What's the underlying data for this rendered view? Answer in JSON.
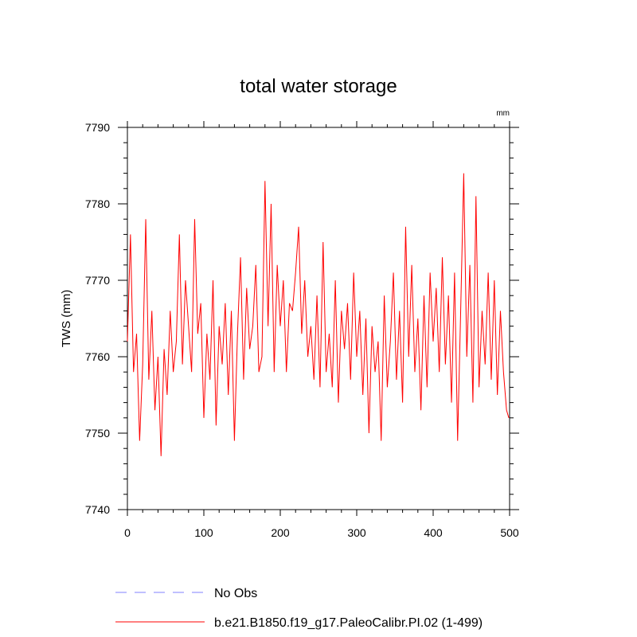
{
  "chart_data": {
    "type": "line",
    "title": "total water storage",
    "ylabel": "TWS  (mm)",
    "xlabel": "",
    "units": "mm",
    "xlim": [
      0,
      500
    ],
    "ylim": [
      7740,
      7790
    ],
    "xticks": [
      0,
      100,
      200,
      300,
      400,
      500
    ],
    "yticks": [
      7740,
      7750,
      7760,
      7770,
      7780,
      7790
    ],
    "grid": false,
    "legend_position": "bottom",
    "series": [
      {
        "name": "No Obs",
        "color": "#8080ff",
        "dash": "dashed",
        "x": [],
        "y": []
      },
      {
        "name": "b.e21.B1850.f19_g17.PaleoCalibr.PI.02 (1-499)",
        "color": "#ff0000",
        "dash": "solid",
        "x": [
          0,
          4,
          8,
          12,
          16,
          20,
          24,
          28,
          32,
          36,
          40,
          44,
          48,
          52,
          56,
          60,
          64,
          68,
          72,
          76,
          80,
          84,
          88,
          92,
          96,
          100,
          104,
          108,
          112,
          116,
          120,
          124,
          128,
          132,
          136,
          140,
          144,
          148,
          152,
          156,
          160,
          164,
          168,
          172,
          176,
          180,
          184,
          188,
          192,
          196,
          200,
          204,
          208,
          212,
          216,
          220,
          224,
          228,
          232,
          236,
          240,
          244,
          248,
          252,
          256,
          260,
          264,
          268,
          272,
          276,
          280,
          284,
          288,
          292,
          296,
          300,
          304,
          308,
          312,
          316,
          320,
          324,
          328,
          332,
          336,
          340,
          344,
          348,
          352,
          356,
          360,
          364,
          368,
          372,
          376,
          380,
          384,
          388,
          392,
          396,
          400,
          404,
          408,
          412,
          416,
          420,
          424,
          428,
          432,
          436,
          440,
          444,
          448,
          452,
          456,
          460,
          464,
          468,
          472,
          476,
          480,
          484,
          488,
          492,
          496,
          499
        ],
        "y": [
          7762,
          7776,
          7758,
          7763,
          7749,
          7759,
          7778,
          7757,
          7766,
          7753,
          7760,
          7747,
          7761,
          7755,
          7766,
          7758,
          7762,
          7776,
          7759,
          7770,
          7764,
          7758,
          7778,
          7763,
          7767,
          7752,
          7763,
          7757,
          7770,
          7751,
          7764,
          7759,
          7767,
          7755,
          7766,
          7749,
          7763,
          7773,
          7757,
          7769,
          7761,
          7764,
          7772,
          7758,
          7760,
          7783,
          7764,
          7780,
          7758,
          7772,
          7764,
          7770,
          7758,
          7767,
          7766,
          7771,
          7777,
          7763,
          7770,
          7760,
          7764,
          7757,
          7768,
          7756,
          7775,
          7758,
          7763,
          7756,
          7770,
          7754,
          7766,
          7761,
          7767,
          7757,
          7771,
          7760,
          7766,
          7755,
          7765,
          7750,
          7764,
          7758,
          7762,
          7749,
          7768,
          7756,
          7762,
          7771,
          7757,
          7766,
          7754,
          7777,
          7760,
          7772,
          7758,
          7765,
          7753,
          7768,
          7756,
          7771,
          7762,
          7769,
          7758,
          7773,
          7759,
          7768,
          7754,
          7771,
          7749,
          7766,
          7784,
          7760,
          7772,
          7754,
          7781,
          7756,
          7766,
          7759,
          7771,
          7757,
          7770,
          7755,
          7766,
          7758,
          7753,
          7752
        ]
      }
    ]
  }
}
